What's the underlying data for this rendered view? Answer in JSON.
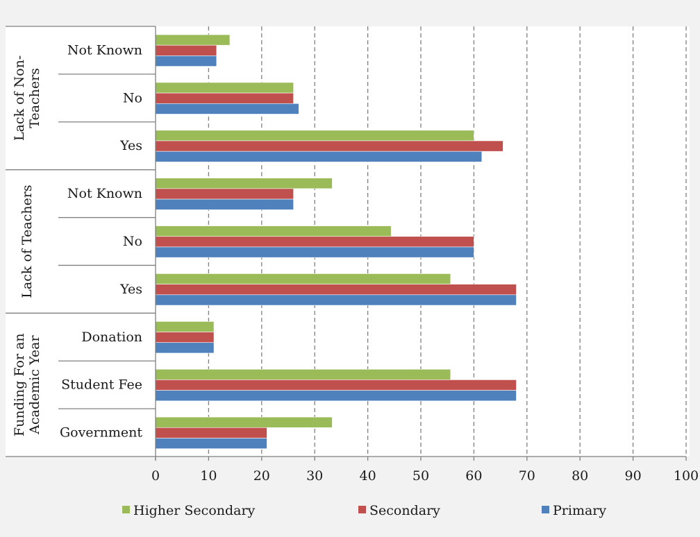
{
  "chart_data": {
    "type": "bar",
    "orientation": "horizontal",
    "groups": [
      {
        "label_lines": [
          "Funding For an",
          "Academic Year"
        ],
        "categories": [
          "Government",
          "Student Fee",
          "Donation"
        ]
      },
      {
        "label_lines": [
          "Lack of Teachers"
        ],
        "categories": [
          "Yes",
          "No",
          "Not Known"
        ]
      },
      {
        "label_lines": [
          "Lack of Non-",
          "Teachers"
        ],
        "categories": [
          "Yes",
          "No",
          "Not Known"
        ]
      }
    ],
    "categories": [
      "Government",
      "Student Fee",
      "Donation",
      "Yes",
      "No",
      "Not Known",
      "Yes",
      "No",
      "Not Known"
    ],
    "series": [
      {
        "name": "Primary",
        "color": "#4f81bd",
        "values": [
          21,
          68,
          11,
          68,
          60,
          26,
          61.5,
          27,
          11.5
        ]
      },
      {
        "name": "Secondary",
        "color": "#c0504d",
        "values": [
          21,
          68,
          11,
          68,
          60,
          26,
          65.5,
          26,
          11.5
        ]
      },
      {
        "name": "Higher Secondary",
        "color": "#9bbb59",
        "values": [
          33.3,
          55.6,
          11,
          55.6,
          44.4,
          33.3,
          60,
          26,
          14
        ]
      }
    ],
    "legend_order": [
      "Higher Secondary",
      "Secondary",
      "Primary"
    ],
    "xlim": [
      0,
      100
    ],
    "xticks": [
      0,
      10,
      20,
      30,
      40,
      50,
      60,
      70,
      80,
      90,
      100
    ],
    "grid": "vertical-dashed",
    "legend_position": "bottom"
  }
}
